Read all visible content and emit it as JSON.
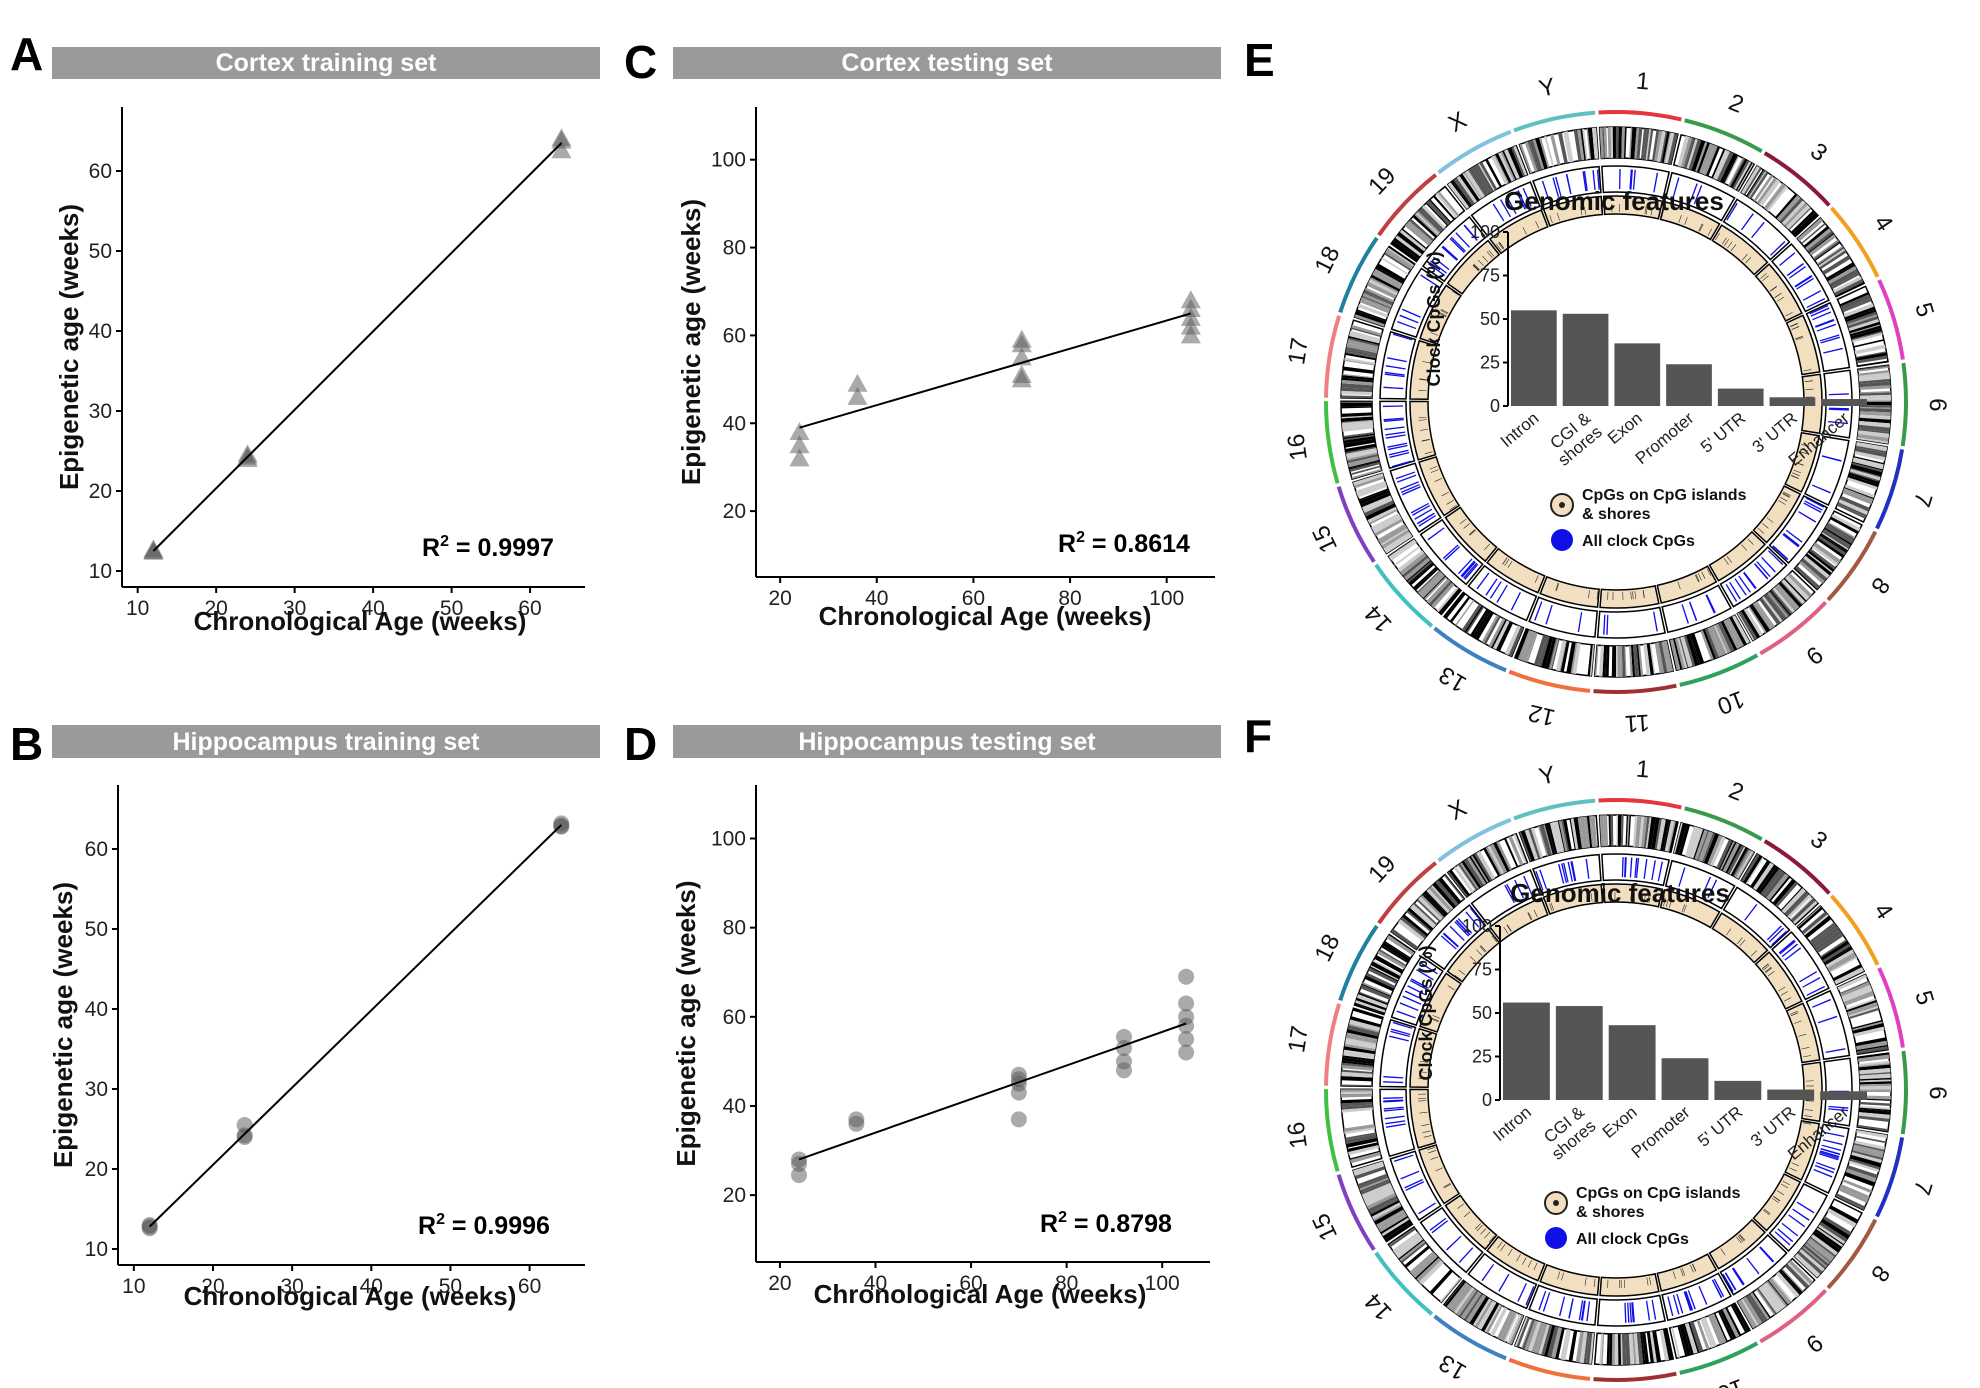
{
  "panels": [
    {
      "id": "A",
      "label": "A",
      "title": "Cortex training set",
      "marker": "triangle",
      "xlabel": "Chronological Age (weeks)",
      "ylabel": "Epigenetic age (weeks)",
      "r2_main": "R",
      "r2_sup": "2",
      "r2_value": " = 0.9997"
    },
    {
      "id": "B",
      "label": "B",
      "title": "Hippocampus training set",
      "marker": "circle",
      "xlabel": "Chronological Age (weeks)",
      "ylabel": "Epigenetic age (weeks)",
      "r2_main": "R",
      "r2_sup": "2",
      "r2_value": " = 0.9996"
    },
    {
      "id": "C",
      "label": "C",
      "title": "Cortex testing set",
      "marker": "triangle",
      "xlabel": "Chronological Age (weeks)",
      "ylabel": "Epigenetic age (weeks)",
      "r2_main": "R",
      "r2_sup": "2",
      "r2_value": " = 0.8614"
    },
    {
      "id": "D",
      "label": "D",
      "title": "Hippocampus testing set",
      "marker": "circle",
      "xlabel": "Chronological Age (weeks)",
      "ylabel": "Epigenetic age (weeks)",
      "r2_main": "R",
      "r2_sup": "2",
      "r2_value": " = 0.8798"
    },
    {
      "id": "E",
      "label": "E"
    },
    {
      "id": "F",
      "label": "F"
    }
  ],
  "colors": {
    "title_bar": "#9a9a9a",
    "point": "#555555",
    "bar": "#555555",
    "cgi_fill": "#f2dfbf",
    "clock_blue": "#1010e6",
    "line": "#000000"
  },
  "chart_data": [
    {
      "type": "scatter",
      "panel": "A",
      "xlabel": "Chronological Age (weeks)",
      "ylabel": "Epigenetic age (weeks)",
      "xlim": [
        8,
        67
      ],
      "ylim": [
        8,
        68
      ],
      "xticks": [
        10,
        20,
        30,
        40,
        50,
        60
      ],
      "yticks": [
        10,
        20,
        30,
        40,
        50,
        60
      ],
      "points": [
        [
          12,
          12.7
        ],
        [
          12,
          12.5
        ],
        [
          12,
          12.4
        ],
        [
          24,
          24.3
        ],
        [
          24,
          24.0
        ],
        [
          24,
          24.6
        ],
        [
          64,
          63.8
        ],
        [
          64,
          62.6
        ],
        [
          64,
          64.1
        ]
      ],
      "fit": [
        [
          12,
          12.5
        ],
        [
          64,
          63.5
        ]
      ],
      "r2": 0.9997
    },
    {
      "type": "scatter",
      "panel": "B",
      "xlabel": "Chronological Age (weeks)",
      "ylabel": "Epigenetic age (weeks)",
      "xlim": [
        8,
        67
      ],
      "ylim": [
        8,
        68
      ],
      "xticks": [
        10,
        20,
        30,
        40,
        50,
        60
      ],
      "yticks": [
        10,
        20,
        30,
        40,
        50,
        60
      ],
      "points": [
        [
          12,
          12.8
        ],
        [
          12,
          13.0
        ],
        [
          12,
          12.6
        ],
        [
          24,
          24.2
        ],
        [
          24,
          25.5
        ],
        [
          24,
          24.0
        ],
        [
          64,
          62.8
        ],
        [
          64,
          63.2
        ],
        [
          64,
          62.9
        ]
      ],
      "fit": [
        [
          12,
          12.8
        ],
        [
          64,
          63.0
        ]
      ],
      "r2": 0.9996
    },
    {
      "type": "scatter",
      "panel": "C",
      "xlabel": "Chronological Age (weeks)",
      "ylabel": "Epigenetic age (weeks)",
      "xlim": [
        15,
        110
      ],
      "ylim": [
        5,
        112
      ],
      "xticks": [
        20,
        40,
        60,
        80,
        100
      ],
      "yticks": [
        20,
        40,
        60,
        80,
        100
      ],
      "points": [
        [
          24,
          38
        ],
        [
          24,
          35
        ],
        [
          24,
          32
        ],
        [
          36,
          49
        ],
        [
          36,
          46
        ],
        [
          70,
          59
        ],
        [
          70,
          58
        ],
        [
          70,
          55
        ],
        [
          70,
          51
        ],
        [
          70,
          50
        ],
        [
          105,
          68
        ],
        [
          105,
          66
        ],
        [
          105,
          64
        ],
        [
          105,
          62
        ],
        [
          105,
          60
        ]
      ],
      "fit": [
        [
          24,
          39
        ],
        [
          105,
          65
        ]
      ],
      "r2": 0.8614
    },
    {
      "type": "scatter",
      "panel": "D",
      "xlabel": "Chronological Age (weeks)",
      "ylabel": "Epigenetic age (weeks)",
      "xlim": [
        15,
        110
      ],
      "ylim": [
        5,
        112
      ],
      "xticks": [
        20,
        40,
        60,
        80,
        100
      ],
      "yticks": [
        20,
        40,
        60,
        80,
        100
      ],
      "points": [
        [
          24,
          28
        ],
        [
          24,
          27
        ],
        [
          24,
          24.5
        ],
        [
          36,
          37
        ],
        [
          36,
          36
        ],
        [
          70,
          47
        ],
        [
          70,
          46
        ],
        [
          70,
          45
        ],
        [
          70,
          43
        ],
        [
          70,
          37
        ],
        [
          92,
          55.5
        ],
        [
          92,
          53
        ],
        [
          92,
          50
        ],
        [
          92,
          48
        ],
        [
          105,
          69
        ],
        [
          105,
          63
        ],
        [
          105,
          60
        ],
        [
          105,
          58
        ],
        [
          105,
          55
        ],
        [
          105,
          52
        ]
      ],
      "fit": [
        [
          24,
          28
        ],
        [
          105,
          58.5
        ]
      ],
      "r2": 0.8798
    },
    {
      "type": "bar",
      "panel": "E",
      "title": "Genomic features",
      "ylabel": "Clock CpGs (%)",
      "ylim": [
        0,
        100
      ],
      "yticks": [
        0,
        25,
        50,
        75,
        100
      ],
      "categories": [
        "Intron",
        "CGI & shores",
        "Exon",
        "Promoter",
        "5' UTR",
        "3' UTR",
        "Enhancer"
      ],
      "values": [
        55,
        53,
        36,
        24,
        10,
        5,
        4
      ]
    },
    {
      "type": "bar",
      "panel": "F",
      "title": "Genomic features",
      "ylabel": "Clock CpGs (%)",
      "ylim": [
        0,
        100
      ],
      "yticks": [
        0,
        25,
        50,
        75,
        100
      ],
      "categories": [
        "Intron",
        "CGI & shores",
        "Exon",
        "Promoter",
        "5' UTR",
        "3' UTR",
        "Enhancer"
      ],
      "values": [
        56,
        54,
        43,
        24,
        11,
        6,
        5
      ]
    }
  ],
  "circos": {
    "chromosomes": [
      "1",
      "2",
      "3",
      "4",
      "5",
      "6",
      "7",
      "8",
      "9",
      "10",
      "11",
      "12",
      "13",
      "14",
      "15",
      "16",
      "17",
      "18",
      "19",
      "X",
      "Y"
    ],
    "chrom_colors": [
      "#e8343b",
      "#3a9a4a",
      "#8b1a3a",
      "#f0a020",
      "#e040c0",
      "#3a9a4a",
      "#2030c0",
      "#a05a40",
      "#e06080",
      "#30a060",
      "#a03030",
      "#f07040",
      "#4080c0",
      "#40c0c0",
      "#8040c0",
      "#40c040",
      "#f08080",
      "#2080a0",
      "#c04040",
      "#80c0e0",
      "#60c0c0"
    ],
    "legend_cgi": "CpGs on CpG islands",
    "legend_cgi_2": "& shores",
    "legend_all": "All clock CpGs"
  }
}
